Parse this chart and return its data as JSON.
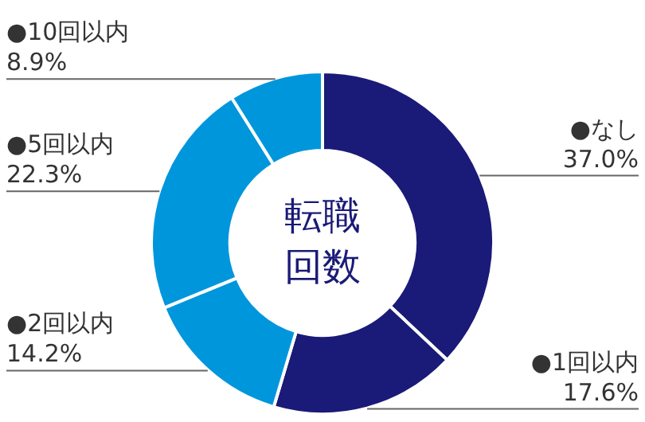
{
  "chart_data": {
    "type": "donut",
    "title": "転職回数",
    "categories": [
      "●なし",
      "●1回以内",
      "●2回以内",
      "●5回以内",
      "●10回以内"
    ],
    "values": [
      37.0,
      17.6,
      14.2,
      22.3,
      8.9
    ],
    "value_labels": [
      "37.0%",
      "17.6%",
      "14.2%",
      "22.3%",
      "8.9%"
    ],
    "colors": [
      "#1a1a78",
      "#1a1a78",
      "#0096dc",
      "#0096dc",
      "#0096dc"
    ],
    "legend": false
  }
}
